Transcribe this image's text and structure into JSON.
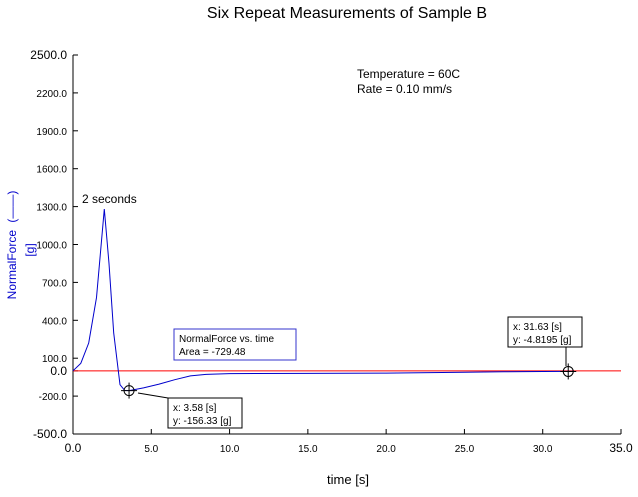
{
  "chart_data": {
    "type": "line",
    "title": "Six Repeat Measurements of Sample B",
    "xlabel": "time [s]",
    "ylabel": "NormalForce",
    "ylabel_marker": "(——)",
    "ylabel_unit": "[g]",
    "xlim": [
      0,
      35
    ],
    "ylim": [
      -500,
      2500
    ],
    "x_ticks": [
      "0.0",
      "5.0",
      "10.0",
      "15.0",
      "20.0",
      "25.0",
      "30.0",
      "35.0"
    ],
    "x_tick_values": [
      0,
      5,
      10,
      15,
      20,
      25,
      30,
      35
    ],
    "y_ticks": [
      "2500.0",
      "2200.0",
      "1900.0",
      "1600.0",
      "1300.0",
      "1000.0",
      "700.0",
      "400.0",
      "100.0",
      "0.0",
      "-200.0",
      "-500.0"
    ],
    "y_tick_values": [
      2500,
      2200,
      1900,
      1600,
      1300,
      1000,
      700,
      400,
      100,
      0,
      -200,
      -500
    ],
    "grid": false,
    "series": [
      {
        "name": "NormalForce",
        "color": "#0000cc",
        "x": [
          0.0,
          0.5,
          1.0,
          1.5,
          2.0,
          2.3,
          2.6,
          3.0,
          3.3,
          3.58,
          4.5,
          5.5,
          6.5,
          7.5,
          8.5,
          10.0,
          15.0,
          20.0,
          25.0,
          27.5,
          30.0,
          31.63,
          32.0
        ],
        "y": [
          0.0,
          60.0,
          220.0,
          580.0,
          1280.0,
          850.0,
          300.0,
          -110.0,
          -155.0,
          -156.33,
          -135.0,
          -105.0,
          -70.0,
          -40.0,
          -28.0,
          -22.0,
          -20.0,
          -18.0,
          -12.0,
          -8.0,
          -5.0,
          -4.8195,
          -4.5
        ]
      }
    ],
    "reference_line": {
      "y": 0,
      "color": "#ff0000"
    },
    "annotations": {
      "peak_label": "2 seconds",
      "info_lines": [
        "Temperature = 60C",
        "Rate = 0.10 mm/s"
      ],
      "area_box": [
        "NormalForce vs. time",
        "Area = -729.48"
      ],
      "cursor1": {
        "x": 3.58,
        "y": -156.33,
        "line1": "x: 3.58 [s]",
        "line2": "y: -156.33 [g]"
      },
      "cursor2": {
        "x": 31.63,
        "y": -4.8195,
        "line1": "x: 31.63 [s]",
        "line2": "y: -4.8195 [g]"
      }
    }
  }
}
